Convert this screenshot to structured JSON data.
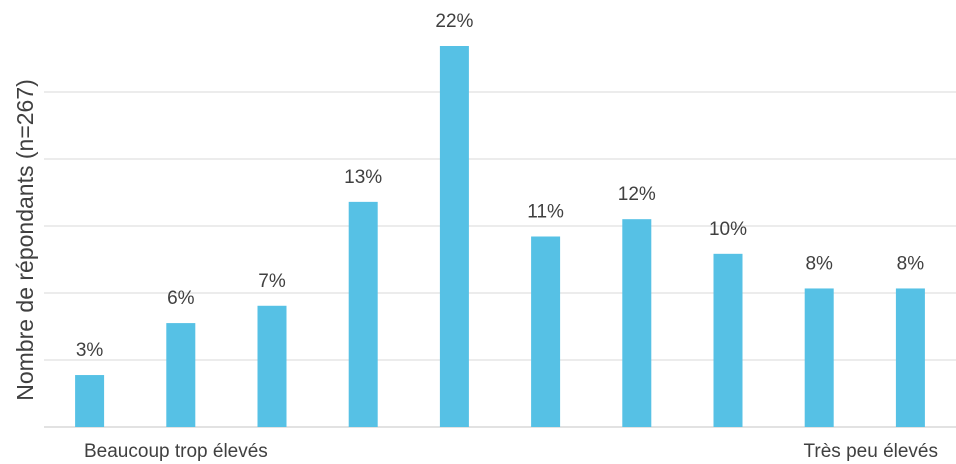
{
  "chart_data": {
    "type": "bar",
    "ylabel": "Nombre de répondants (n=267)",
    "values": [
      3,
      6,
      7,
      13,
      22,
      11,
      12,
      10,
      8,
      8
    ],
    "data_labels": [
      "3%",
      "6%",
      "7%",
      "13%",
      "22%",
      "11%",
      "12%",
      "10%",
      "8%",
      "8%"
    ],
    "scale_left_label": "Beaucoup trop élevés",
    "scale_right_label": "Très peu élevés",
    "bar_color": "#56C1E5",
    "grid": true,
    "legend": "none"
  }
}
